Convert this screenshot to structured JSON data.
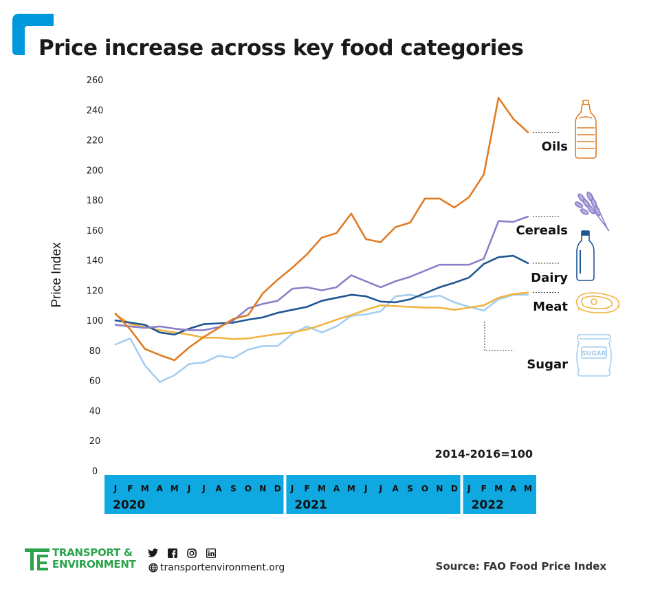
{
  "title": "Price increase across key food categories",
  "chart_data": {
    "type": "line",
    "title": "Price increase across key food categories",
    "ylabel": "Price Index",
    "xlabel": "",
    "ylim": [
      0,
      260
    ],
    "yticks": [
      0,
      20,
      40,
      60,
      80,
      100,
      120,
      140,
      160,
      180,
      200,
      220,
      240,
      260
    ],
    "baseline_note": "2014-2016=100",
    "x": [
      "J",
      "F",
      "M",
      "A",
      "M",
      "J",
      "J",
      "A",
      "S",
      "O",
      "N",
      "D",
      "J",
      "F",
      "M",
      "A",
      "M",
      "J",
      "J",
      "A",
      "S",
      "O",
      "N",
      "D",
      "J",
      "F",
      "M",
      "A",
      "M"
    ],
    "years": [
      {
        "label": "2020",
        "start": 0,
        "end": 11
      },
      {
        "label": "2021",
        "start": 12,
        "end": 23
      },
      {
        "label": "2022",
        "start": 24,
        "end": 28
      }
    ],
    "series": [
      {
        "name": "Oils",
        "color": "#e07b24",
        "values": [
          104.5,
          94,
          81,
          77,
          73.5,
          82,
          89,
          95,
          101,
          103.5,
          118,
          127,
          135,
          144,
          155,
          158,
          171,
          154,
          152,
          162,
          165,
          181,
          181,
          175,
          182,
          197,
          248,
          234,
          225
        ]
      },
      {
        "name": "Cereals",
        "color": "#8a80c8",
        "values": [
          97,
          96,
          95,
          96,
          94.5,
          93.5,
          93.5,
          95.5,
          100,
          108,
          111,
          113,
          121,
          122,
          120,
          122,
          130,
          126,
          122,
          126,
          129,
          133,
          137,
          137,
          137,
          141,
          166,
          165.5,
          169
        ]
      },
      {
        "name": "Dairy",
        "color": "#1e5593",
        "values": [
          100,
          98.5,
          97,
          92,
          90.5,
          94.5,
          97.5,
          98,
          98.5,
          100.5,
          102,
          105,
          107,
          109,
          113,
          115,
          117,
          116,
          112.5,
          112,
          114,
          118,
          122,
          125,
          128.5,
          137.5,
          142,
          143,
          138
        ]
      },
      {
        "name": "Meat",
        "color": "#f0b443",
        "values": [
          104,
          97.5,
          95.5,
          93.5,
          92,
          90.5,
          88.5,
          88.5,
          87.5,
          88,
          89.5,
          91,
          92,
          94,
          97,
          100.5,
          103.5,
          107,
          110,
          109.5,
          109,
          108.5,
          108.5,
          107,
          108.5,
          110,
          115,
          117.5,
          118.5
        ]
      },
      {
        "name": "Sugar",
        "color": "#a4cdf0",
        "values": [
          84,
          88,
          70,
          59,
          63.5,
          71,
          72,
          76.5,
          75,
          80.5,
          83,
          83,
          91,
          96,
          92,
          96,
          103,
          104,
          106,
          116,
          117,
          115,
          116.5,
          112,
          109,
          106.5,
          114,
          117,
          117
        ]
      }
    ]
  },
  "footer": {
    "logo_line1": "TRANSPORT &",
    "logo_line2": "ENVIRONMENT",
    "site": "transportenvironment.org",
    "source": "Source: FAO Food Price Index"
  },
  "icons": [
    "oil-bottle-icon",
    "wheat-icon",
    "milk-bottle-icon",
    "meat-steak-icon",
    "sugar-sack-icon"
  ]
}
